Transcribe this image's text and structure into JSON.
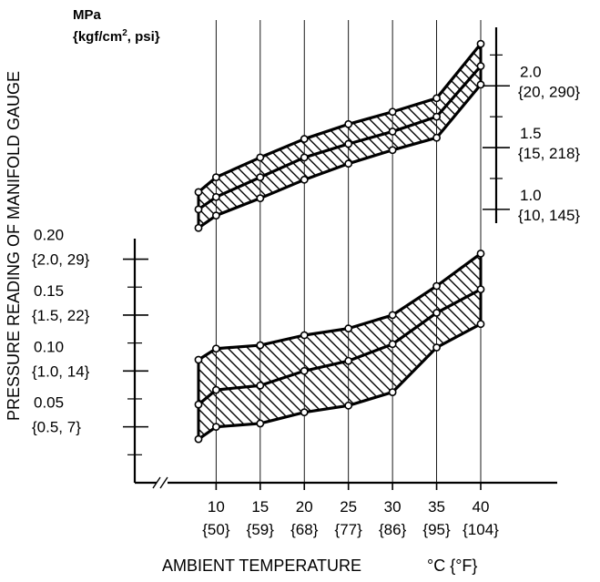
{
  "chart_data": {
    "type": "area",
    "x": [
      8,
      10,
      15,
      20,
      25,
      30,
      35,
      40
    ],
    "xlim": [
      8,
      40
    ],
    "x_tick_values": [
      10,
      15,
      20,
      25,
      30,
      35,
      40
    ],
    "x_tick_labels_f": [
      "{50}",
      "{59}",
      "{68}",
      "{77}",
      "{86}",
      "{95}",
      "{104}"
    ],
    "xlabel": "AMBIENT TEMPERATURE",
    "xunit": "°C {°F}",
    "ylabel": "PRESSURE READING OF MANIFOLD GAUGE",
    "grid": "vertical",
    "panels": [
      {
        "side": "high",
        "unit_line1": "MPa",
        "unit_line2": "{kgf/cm",
        "unit_sup": "2",
        "unit_line2_tail": ", psi}",
        "ylim": [
          0.8,
          2.4
        ],
        "ticks": [
          {
            "value": 2.0,
            "mpa": "2.0",
            "alt": "{20, 290}"
          },
          {
            "value": 1.5,
            "mpa": "1.5",
            "alt": "{15, 218}"
          },
          {
            "value": 1.0,
            "mpa": "1.0",
            "alt": "{10, 145}"
          }
        ],
        "series": [
          {
            "values": [
              1.14,
              1.26,
              1.42,
              1.57,
              1.69,
              1.79,
              1.9,
              2.34
            ]
          },
          {
            "values": [
              1.0,
              1.1,
              1.26,
              1.42,
              1.53,
              1.63,
              1.75,
              2.16
            ]
          },
          {
            "values": [
              0.85,
              0.95,
              1.09,
              1.24,
              1.37,
              1.48,
              1.58,
              2.01
            ]
          }
        ]
      },
      {
        "side": "low",
        "ylim": [
          0.0,
          0.22
        ],
        "ticks": [
          {
            "value": 0.2,
            "mpa": "0.20",
            "alt": "{2.0, 29}"
          },
          {
            "value": 0.15,
            "mpa": "0.15",
            "alt": "{1.5, 22}"
          },
          {
            "value": 0.1,
            "mpa": "0.10",
            "alt": "{1.0, 14}"
          },
          {
            "value": 0.05,
            "mpa": "0.05",
            "alt": "{0.5, 7}"
          }
        ],
        "series": [
          {
            "values": [
              0.11,
              0.12,
              0.123,
              0.132,
              0.138,
              0.15,
              0.176,
              0.205
            ]
          },
          {
            "values": [
              0.07,
              0.083,
              0.087,
              0.1,
              0.109,
              0.124,
              0.152,
              0.173
            ]
          },
          {
            "values": [
              0.039,
              0.05,
              0.053,
              0.063,
              0.069,
              0.081,
              0.121,
              0.142
            ]
          }
        ]
      }
    ]
  }
}
